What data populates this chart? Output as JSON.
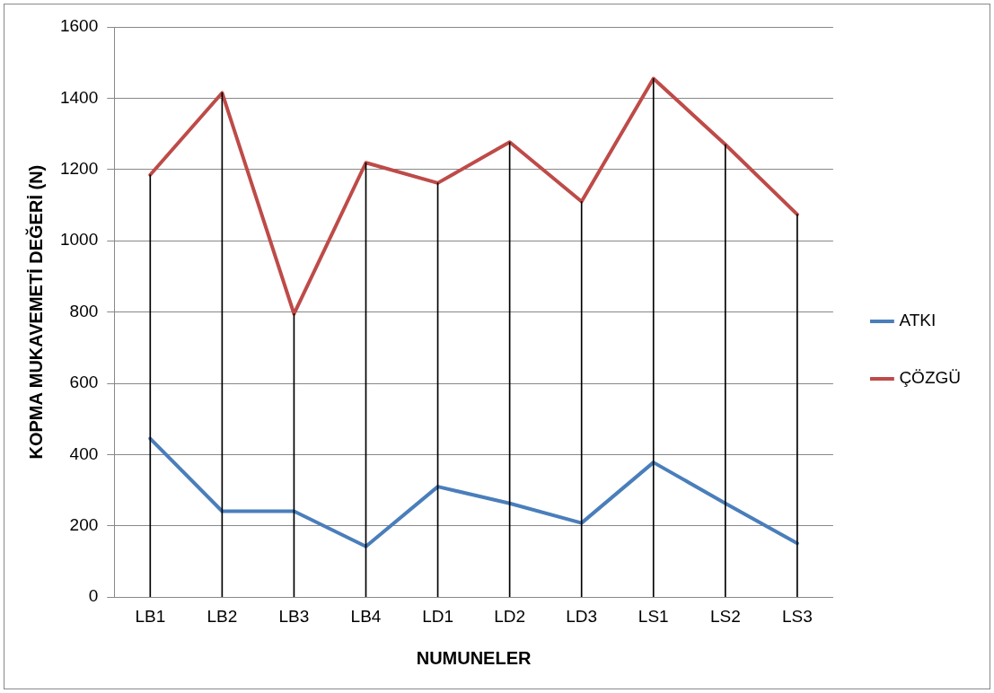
{
  "chart_data": {
    "type": "line",
    "xlabel": "NUMUNELER",
    "ylabel": "KOPMA MUKAVEMETİ DEĞERİ (N)",
    "categories": [
      "LB1",
      "LB2",
      "LB3",
      "LB4",
      "LD1",
      "LD2",
      "LD3",
      "LS1",
      "LS2",
      "LS3"
    ],
    "series": [
      {
        "name": "ATKI",
        "color": "#4a7ebb",
        "values": [
          445,
          241,
          241,
          142,
          310,
          263,
          208,
          378,
          263,
          151
        ]
      },
      {
        "name": "ÇÖZGÜ",
        "color": "#be4b48",
        "values": [
          1185,
          1415,
          795,
          1219,
          1162,
          1277,
          1110,
          1455,
          1270,
          1074
        ]
      },
      {
        "type": "bar",
        "color": "#000000",
        "values": [
          1185,
          1415,
          795,
          1219,
          1162,
          1277,
          1110,
          1455,
          1270,
          1074
        ]
      }
    ],
    "ylim": [
      0,
      1600
    ],
    "yticks": [
      0,
      200,
      400,
      600,
      800,
      1000,
      1200,
      1400,
      1600
    ],
    "grid": true,
    "legend": "right",
    "marker": "none",
    "line_style": "solid"
  }
}
